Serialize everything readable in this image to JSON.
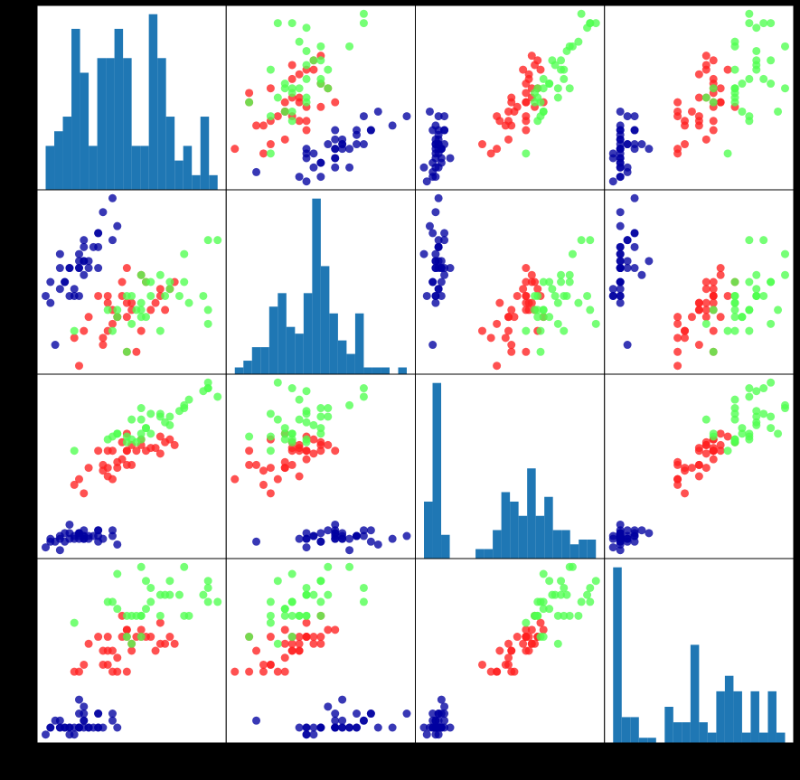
{
  "chart_data": {
    "type": "scatter_matrix",
    "dimensions": [
      {
        "lim": [
          4.12,
          8.08
        ],
        "hist": {
          "color": "#1f77b4",
          "ylim": [
            0,
            12.6
          ],
          "bins": [
            4.3,
            4.48,
            4.66,
            4.84,
            5.02,
            5.2,
            5.38,
            5.56,
            5.74,
            5.92,
            6.1,
            6.28,
            6.46,
            6.64,
            6.82,
            7.0,
            7.18,
            7.36,
            7.54,
            7.72,
            7.9
          ],
          "counts": [
            3,
            4,
            5,
            11,
            8,
            3,
            9,
            9,
            11,
            9,
            3,
            3,
            12,
            9,
            5,
            2,
            3,
            1,
            5,
            1
          ]
        }
      },
      {
        "lim": [
          1.88,
          4.52
        ],
        "hist": {
          "color": "#1f77b4",
          "ylim": [
            0,
            27.3
          ],
          "bins": [
            2.0,
            2.12,
            2.24,
            2.36,
            2.48,
            2.6,
            2.72,
            2.84,
            2.96,
            3.08,
            3.2,
            3.32,
            3.44,
            3.56,
            3.68,
            3.8,
            3.92,
            4.04,
            4.16,
            4.28,
            4.4
          ],
          "counts": [
            1,
            2,
            4,
            4,
            10,
            12,
            7,
            6,
            12,
            26,
            16,
            9,
            5,
            3,
            9,
            1,
            1,
            1,
            0,
            1
          ]
        }
      },
      {
        "lim": [
          0.705,
          7.195
        ],
        "hist": {
          "color": "#1f77b4",
          "ylim": [
            0,
            38.85
          ],
          "bins": [
            1.0,
            1.295,
            1.59,
            1.885,
            2.18,
            2.475,
            2.77,
            3.065,
            3.36,
            3.655,
            3.95,
            4.245,
            4.54,
            4.835,
            5.13,
            5.425,
            5.72,
            6.015,
            6.31,
            6.605,
            6.9
          ],
          "counts": [
            12,
            37,
            5,
            0,
            0,
            0,
            2,
            2,
            6,
            14,
            12,
            9,
            19,
            9,
            13,
            6,
            6,
            3,
            4,
            4
          ]
        }
      },
      {
        "lim": [
          -0.02,
          2.62
        ],
        "hist": {
          "color": "#1f77b4",
          "ylim": [
            0,
            35.7
          ],
          "bins": [
            0.1,
            0.22,
            0.34,
            0.46,
            0.58,
            0.7,
            0.82,
            0.94,
            1.06,
            1.18,
            1.3,
            1.42,
            1.54,
            1.66,
            1.78,
            1.9,
            2.02,
            2.14,
            2.26,
            2.38,
            2.5
          ],
          "counts": [
            34,
            5,
            5,
            1,
            1,
            0,
            7,
            4,
            4,
            19,
            4,
            2,
            10,
            13,
            10,
            2,
            10,
            2,
            10,
            2
          ]
        }
      }
    ],
    "series": [
      {
        "color": "#0000a0",
        "points": [
          [
            5.1,
            3.5,
            1.4,
            0.2
          ],
          [
            4.9,
            3.0,
            1.4,
            0.2
          ],
          [
            4.7,
            3.2,
            1.3,
            0.2
          ],
          [
            4.6,
            3.1,
            1.5,
            0.2
          ],
          [
            5.0,
            3.6,
            1.4,
            0.2
          ],
          [
            5.4,
            3.9,
            1.7,
            0.4
          ],
          [
            4.6,
            3.4,
            1.4,
            0.3
          ],
          [
            5.0,
            3.4,
            1.5,
            0.2
          ],
          [
            4.4,
            2.9,
            1.4,
            0.2
          ],
          [
            4.9,
            3.1,
            1.5,
            0.1
          ],
          [
            5.4,
            3.7,
            1.5,
            0.2
          ],
          [
            4.8,
            3.4,
            1.6,
            0.2
          ],
          [
            4.8,
            3.0,
            1.4,
            0.1
          ],
          [
            4.3,
            3.0,
            1.1,
            0.1
          ],
          [
            5.8,
            4.0,
            1.2,
            0.2
          ],
          [
            5.7,
            4.4,
            1.5,
            0.4
          ],
          [
            5.4,
            3.9,
            1.3,
            0.4
          ],
          [
            5.1,
            3.5,
            1.4,
            0.3
          ],
          [
            5.7,
            3.8,
            1.7,
            0.3
          ],
          [
            5.1,
            3.8,
            1.5,
            0.3
          ],
          [
            5.4,
            3.4,
            1.7,
            0.2
          ],
          [
            5.1,
            3.7,
            1.5,
            0.4
          ],
          [
            4.6,
            3.6,
            1.0,
            0.2
          ],
          [
            5.1,
            3.3,
            1.7,
            0.5
          ],
          [
            4.8,
            3.4,
            1.9,
            0.2
          ],
          [
            5.0,
            3.0,
            1.6,
            0.2
          ],
          [
            5.0,
            3.4,
            1.6,
            0.4
          ],
          [
            5.2,
            3.5,
            1.5,
            0.2
          ],
          [
            5.2,
            3.4,
            1.4,
            0.2
          ],
          [
            4.7,
            3.2,
            1.6,
            0.2
          ],
          [
            5.5,
            4.2,
            1.4,
            0.2
          ],
          [
            4.5,
            2.3,
            1.3,
            0.3
          ],
          [
            4.4,
            3.2,
            1.3,
            0.2
          ],
          [
            5.0,
            3.5,
            1.6,
            0.6
          ],
          [
            5.3,
            3.7,
            1.5,
            0.2
          ]
        ]
      },
      {
        "color": "#ff2020",
        "points": [
          [
            7.0,
            3.2,
            4.7,
            1.4
          ],
          [
            6.4,
            3.2,
            4.5,
            1.5
          ],
          [
            6.9,
            3.1,
            4.9,
            1.5
          ],
          [
            5.5,
            2.3,
            4.0,
            1.3
          ],
          [
            6.5,
            2.8,
            4.6,
            1.5
          ],
          [
            5.7,
            2.8,
            4.5,
            1.3
          ],
          [
            6.3,
            3.3,
            4.7,
            1.6
          ],
          [
            4.9,
            2.4,
            3.3,
            1.0
          ],
          [
            6.6,
            2.9,
            4.6,
            1.3
          ],
          [
            5.2,
            2.7,
            3.9,
            1.4
          ],
          [
            5.0,
            2.0,
            3.5,
            1.0
          ],
          [
            5.9,
            3.0,
            4.2,
            1.5
          ],
          [
            6.0,
            2.2,
            4.0,
            1.0
          ],
          [
            6.1,
            2.9,
            4.7,
            1.4
          ],
          [
            5.6,
            2.9,
            3.6,
            1.3
          ],
          [
            6.7,
            3.1,
            4.4,
            1.4
          ],
          [
            5.6,
            3.0,
            4.5,
            1.5
          ],
          [
            5.8,
            2.7,
            4.1,
            1.0
          ],
          [
            6.2,
            2.2,
            4.5,
            1.5
          ],
          [
            5.6,
            2.5,
            3.9,
            1.1
          ],
          [
            5.9,
            3.2,
            4.8,
            1.8
          ],
          [
            6.1,
            2.8,
            4.0,
            1.3
          ],
          [
            6.3,
            2.5,
            4.9,
            1.5
          ],
          [
            6.8,
            2.8,
            4.8,
            1.4
          ],
          [
            6.7,
            3.0,
            5.0,
            1.7
          ],
          [
            6.0,
            2.9,
            4.5,
            1.5
          ],
          [
            5.7,
            2.6,
            3.5,
            1.0
          ],
          [
            5.5,
            2.4,
            3.8,
            1.1
          ],
          [
            5.8,
            2.7,
            3.9,
            1.2
          ],
          [
            6.0,
            2.7,
            5.1,
            1.6
          ],
          [
            5.4,
            3.0,
            4.5,
            1.5
          ],
          [
            6.0,
            3.4,
            4.5,
            1.6
          ],
          [
            5.1,
            2.5,
            3.0,
            1.1
          ]
        ]
      },
      {
        "color": "#50ff50",
        "points": [
          [
            6.3,
            3.3,
            6.0,
            2.5
          ],
          [
            5.8,
            2.7,
            5.1,
            1.9
          ],
          [
            7.1,
            3.0,
            5.9,
            2.1
          ],
          [
            6.3,
            2.9,
            5.6,
            1.8
          ],
          [
            6.5,
            3.0,
            5.8,
            2.2
          ],
          [
            7.6,
            3.0,
            6.6,
            2.1
          ],
          [
            4.9,
            2.5,
            4.5,
            1.7
          ],
          [
            7.3,
            2.9,
            6.3,
            1.8
          ],
          [
            6.7,
            2.5,
            5.8,
            1.8
          ],
          [
            7.2,
            3.6,
            6.1,
            2.5
          ],
          [
            6.5,
            3.2,
            5.1,
            2.0
          ],
          [
            6.4,
            2.7,
            5.3,
            1.9
          ],
          [
            6.8,
            3.0,
            5.5,
            2.1
          ],
          [
            5.7,
            2.5,
            5.0,
            2.0
          ],
          [
            5.8,
            2.8,
            5.1,
            2.4
          ],
          [
            6.4,
            3.2,
            5.3,
            2.3
          ],
          [
            7.7,
            3.8,
            6.7,
            2.2
          ],
          [
            7.7,
            2.6,
            6.9,
            2.3
          ],
          [
            6.0,
            2.2,
            5.0,
            1.5
          ],
          [
            6.9,
            3.2,
            5.7,
            2.3
          ],
          [
            5.6,
            2.8,
            4.9,
            2.0
          ],
          [
            7.7,
            2.8,
            6.7,
            2.0
          ],
          [
            6.3,
            2.7,
            4.9,
            1.8
          ],
          [
            6.7,
            3.3,
            5.7,
            2.1
          ],
          [
            7.2,
            3.2,
            6.0,
            1.8
          ],
          [
            6.2,
            2.8,
            4.8,
            1.8
          ],
          [
            6.1,
            3.0,
            4.9,
            1.8
          ],
          [
            7.9,
            3.8,
            6.4,
            2.0
          ],
          [
            6.3,
            2.8,
            5.1,
            1.5
          ],
          [
            6.1,
            2.6,
            5.6,
            1.4
          ],
          [
            6.0,
            3.0,
            4.8,
            1.8
          ],
          [
            6.9,
            3.1,
            5.4,
            2.1
          ]
        ]
      }
    ]
  }
}
